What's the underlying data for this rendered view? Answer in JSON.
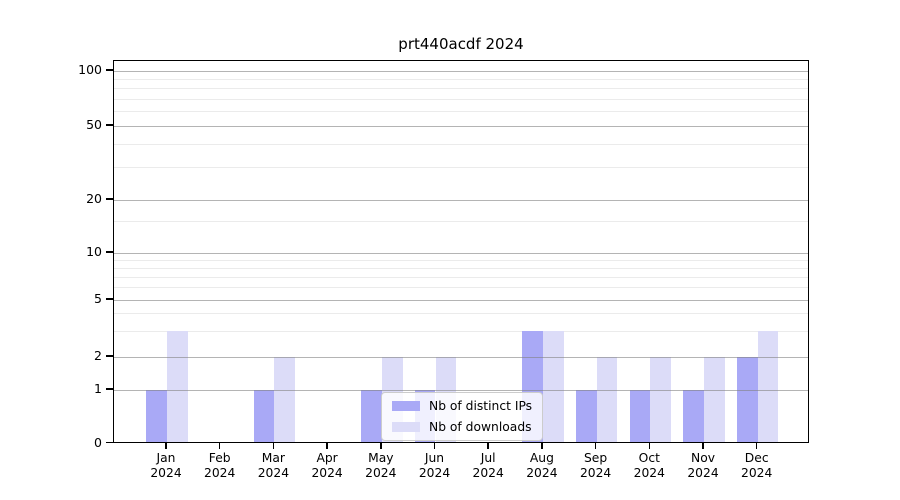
{
  "title": "prt440acdf 2024",
  "colors": {
    "ips_bar": "#a9a9f6",
    "downloads_bar": "#dcdcf8",
    "grid_major": "#828282",
    "grid_minor": "#e9e9e9",
    "spine": "#000000",
    "legend_border": "#cccccc"
  },
  "chart_data": {
    "type": "bar",
    "title": "prt440acdf 2024",
    "categories": [
      "Jan 2024",
      "Feb 2024",
      "Mar 2024",
      "Apr 2024",
      "May 2024",
      "Jun 2024",
      "Jul 2024",
      "Aug 2024",
      "Sep 2024",
      "Oct 2024",
      "Nov 2024",
      "Dec 2024"
    ],
    "series": [
      {
        "name": "Nb of distinct IPs",
        "values": [
          1,
          0,
          1,
          0,
          1,
          1,
          0,
          3,
          1,
          1,
          1,
          2
        ],
        "color": "#a9a9f6"
      },
      {
        "name": "Nb of downloads",
        "values": [
          3,
          0,
          2,
          0,
          2,
          2,
          0,
          3,
          2,
          2,
          2,
          3
        ],
        "color": "#dcdcf8"
      }
    ],
    "xlabel": "",
    "ylabel": "",
    "yscale": "symlog-like",
    "ylim": [
      0,
      100
    ],
    "yticks": [
      0,
      1,
      2,
      5,
      10,
      20,
      50,
      100
    ],
    "minor_yticks": [
      3,
      4,
      6,
      7,
      8,
      9,
      15,
      30,
      40,
      60,
      70,
      80,
      90
    ],
    "grid": true,
    "legend_position": "lower center"
  }
}
